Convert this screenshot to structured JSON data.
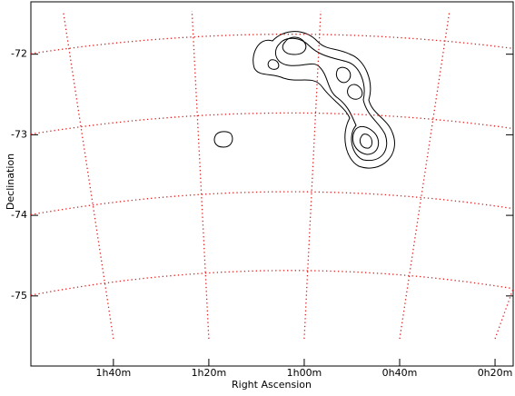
{
  "chart_data": {
    "type": "contour",
    "x_label": "Right Ascension",
    "y_label": "Declination",
    "xlim": [
      117.3,
      16.2
    ],
    "xticks": [
      {
        "value": 100,
        "label": "1h40m"
      },
      {
        "value": 80,
        "label": "1h20m"
      },
      {
        "value": 60,
        "label": "1h00m"
      },
      {
        "value": 40,
        "label": "0h40m"
      },
      {
        "value": 20,
        "label": "0h20m"
      }
    ],
    "ylim": [
      -75.87,
      -71.35
    ],
    "yticks": [
      -72,
      -73,
      -74,
      -75
    ],
    "grid": true,
    "grid_color": "#e0201f",
    "contour_color": "#000000"
  }
}
